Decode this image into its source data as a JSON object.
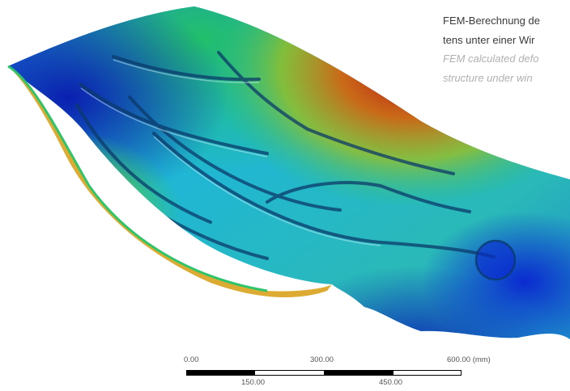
{
  "caption": {
    "de_line1": "FEM-Berechnung de",
    "de_line2": "tens unter einer Wir",
    "en_line1": "FEM calculated defo",
    "en_line2": "structure under win"
  },
  "scale_bar": {
    "top_labels": [
      "0.00",
      "300.00",
      "600.00 (mm)"
    ],
    "bottom_labels": [
      "150.00",
      "450.00"
    ],
    "colors": {
      "dark": "#000000",
      "light": "#ffffff"
    }
  },
  "colors": {
    "contour_low": "#0a1fb0",
    "contour_mid_low": "#1fb6d8",
    "contour_mid": "#2ec56a",
    "contour_mid_high": "#c9c31c",
    "contour_high": "#b81414"
  }
}
